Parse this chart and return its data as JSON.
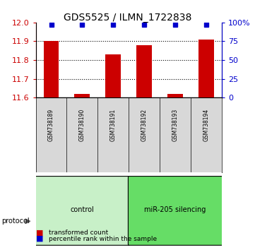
{
  "title": "GDS5525 / ILMN_1722838",
  "samples": [
    "GSM738189",
    "GSM738190",
    "GSM738191",
    "GSM738192",
    "GSM738193",
    "GSM738194"
  ],
  "red_values": [
    11.9,
    11.62,
    11.83,
    11.88,
    11.62,
    11.91
  ],
  "blue_values": [
    97,
    97,
    97,
    97,
    97,
    97
  ],
  "ylim_left": [
    11.6,
    12.0
  ],
  "ylim_right": [
    0,
    100
  ],
  "yticks_left": [
    11.6,
    11.7,
    11.8,
    11.9,
    12.0
  ],
  "yticks_right": [
    0,
    25,
    50,
    75,
    100
  ],
  "yticklabels_right": [
    "0",
    "25",
    "50",
    "75",
    "100%"
  ],
  "groups": [
    {
      "label": "control",
      "start": 0,
      "end": 3,
      "color": "#c8f0c8"
    },
    {
      "label": "miR-205 silencing",
      "start": 3,
      "end": 6,
      "color": "#66dd66"
    }
  ],
  "protocol_label": "protocol",
  "legend_red": "transformed count",
  "legend_blue": "percentile rank within the sample",
  "bar_color": "#cc0000",
  "dot_color": "#0000cc",
  "bar_width": 0.5,
  "background_color": "#ffffff",
  "plot_bg": "#ffffff",
  "grid_color": "#000000",
  "tick_label_color_left": "#cc0000",
  "tick_label_color_right": "#0000cc"
}
